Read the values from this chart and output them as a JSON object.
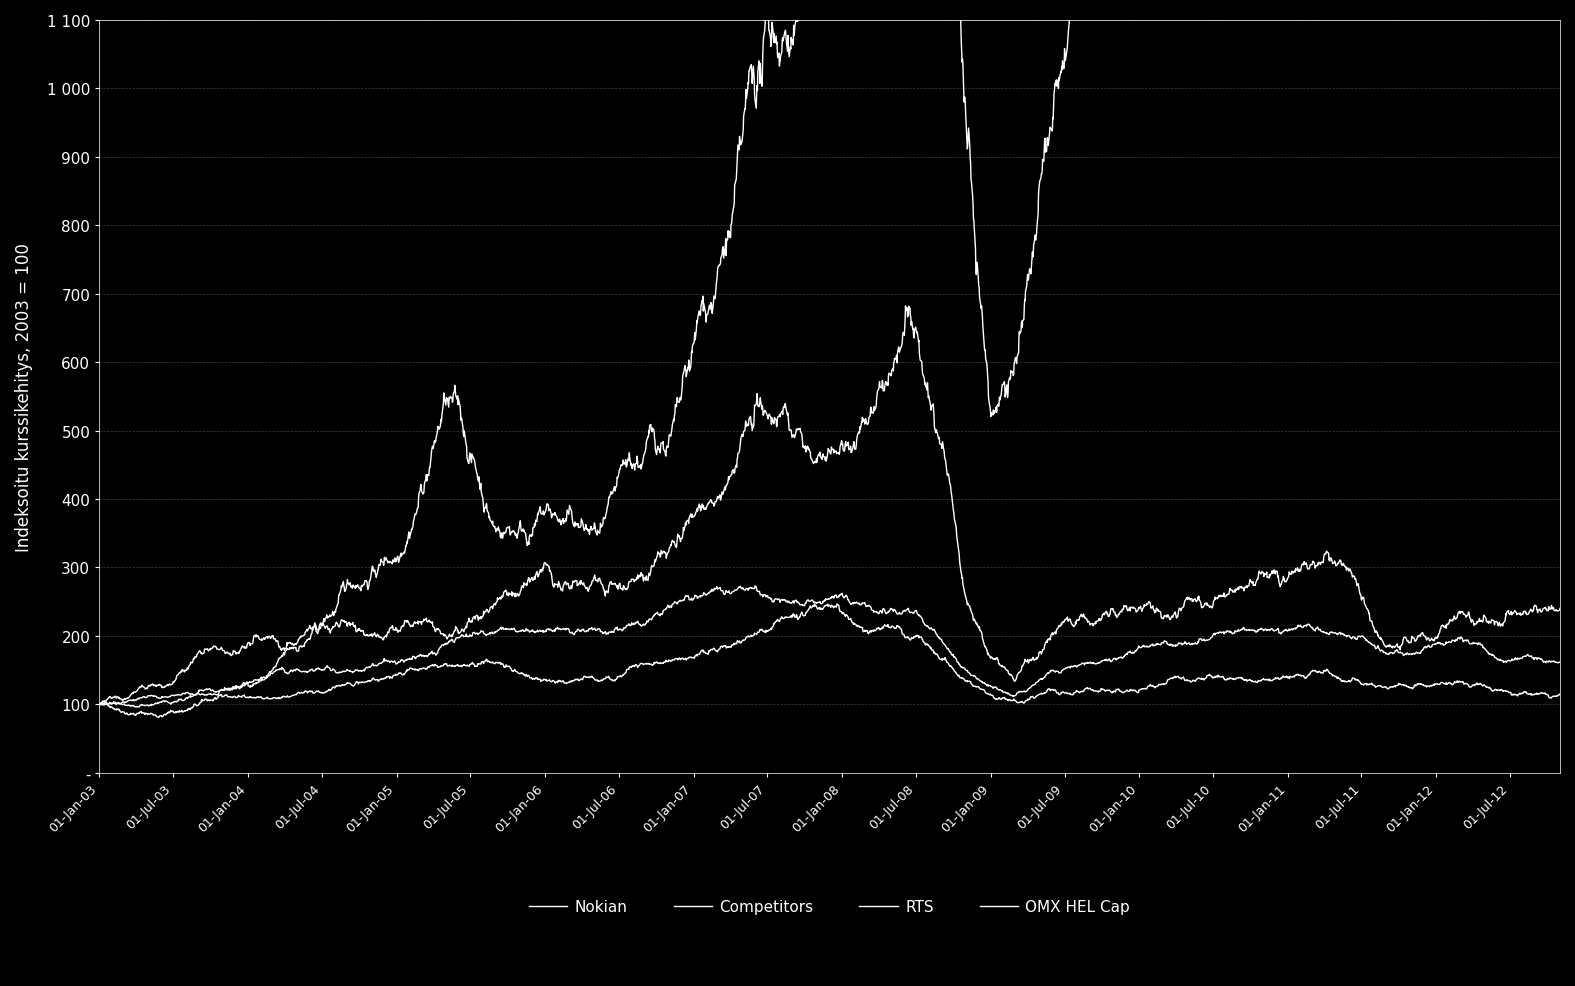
{
  "title": "",
  "ylabel": "Indeksoitu kurssikehitys, 2003 = 100",
  "xlabel": "",
  "background_color": "#000000",
  "text_color": "#ffffff",
  "grid_color": "#555555",
  "line_color": "#ffffff",
  "ylim": [
    0,
    1100
  ],
  "yticks": [
    0,
    100,
    200,
    300,
    400,
    500,
    600,
    700,
    800,
    900,
    1000,
    1100
  ],
  "ytick_labels": [
    "-",
    "100",
    "200",
    "300",
    "400",
    "500",
    "600",
    "700",
    "800",
    "900",
    "1 000",
    "1 100"
  ],
  "legend_entries": [
    "Nokian",
    "Competitors",
    "RTS",
    "OMX HEL Cap"
  ],
  "start_year": 2003,
  "start_month": 1,
  "end_year": 2012,
  "end_month": 10,
  "line_width": 1.0
}
